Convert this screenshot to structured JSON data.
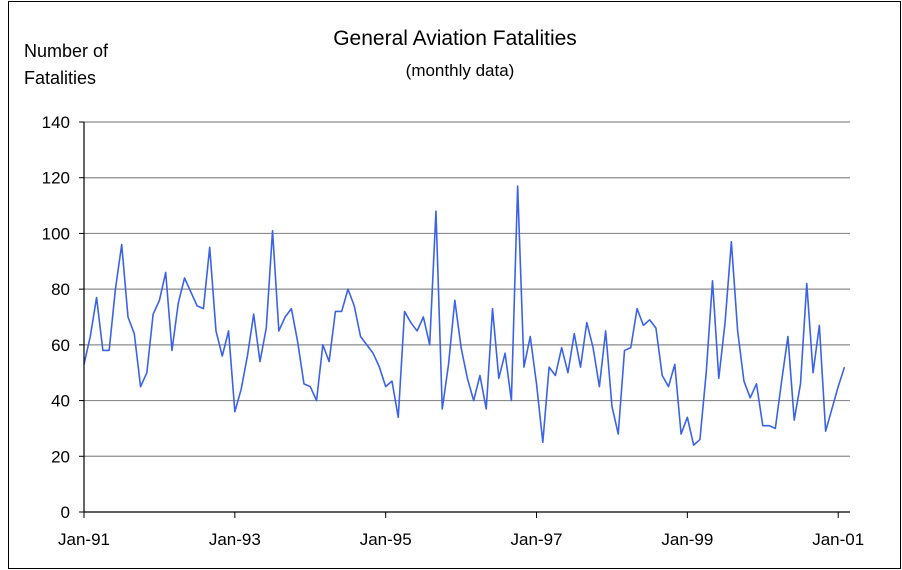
{
  "chart_data": {
    "type": "line",
    "title": "General Aviation Fatalities",
    "subtitle": "(monthly data)",
    "ylabel": "Number of Fatalities",
    "categories": [
      "Jan-91",
      null,
      null,
      null,
      null,
      null,
      null,
      null,
      null,
      null,
      null,
      null,
      null,
      null,
      null,
      null,
      null,
      null,
      null,
      null,
      null,
      null,
      null,
      null,
      "Jan-93",
      null,
      null,
      null,
      null,
      null,
      null,
      null,
      null,
      null,
      null,
      null,
      null,
      null,
      null,
      null,
      null,
      null,
      null,
      null,
      null,
      null,
      null,
      null,
      "Jan-95",
      null,
      null,
      null,
      null,
      null,
      null,
      null,
      null,
      null,
      null,
      null,
      null,
      null,
      null,
      null,
      null,
      null,
      null,
      null,
      null,
      null,
      null,
      null,
      "Jan-97",
      null,
      null,
      null,
      null,
      null,
      null,
      null,
      null,
      null,
      null,
      null,
      null,
      null,
      null,
      null,
      null,
      null,
      null,
      null,
      null,
      null,
      null,
      null,
      "Jan-99",
      null,
      null,
      null,
      null,
      null,
      null,
      null,
      null,
      null,
      null,
      null,
      null,
      null,
      null,
      null,
      null,
      null,
      null,
      null,
      null,
      null,
      null,
      null,
      "Jan-01",
      null
    ],
    "series": [
      {
        "name": "Fatalities",
        "color": "#3b63e8",
        "values": [
          53,
          63,
          77,
          58,
          58,
          80,
          96,
          70,
          64,
          45,
          50,
          71,
          76,
          86,
          58,
          75,
          84,
          79,
          74,
          73,
          95,
          65,
          56,
          65,
          36,
          44,
          56,
          71,
          54,
          66,
          101,
          65,
          70,
          73,
          61,
          46,
          45,
          40,
          60,
          54,
          72,
          72,
          80,
          74,
          63,
          60,
          57,
          52,
          45,
          47,
          34,
          72,
          68,
          65,
          70,
          60,
          108,
          37,
          53,
          76,
          59,
          48,
          40,
          49,
          37,
          73,
          48,
          57,
          40,
          117,
          52,
          63,
          46,
          25,
          52,
          49,
          59,
          50,
          64,
          52,
          68,
          59,
          45,
          65,
          38,
          28,
          58,
          59,
          73,
          67,
          69,
          66,
          49,
          45,
          53,
          28,
          34,
          24,
          26,
          50,
          83,
          48,
          68,
          97,
          65,
          47,
          41,
          46,
          31,
          31,
          30,
          47,
          63,
          33,
          46,
          82,
          50,
          67,
          29,
          37,
          45,
          52
        ]
      }
    ],
    "ylim": [
      0,
      140
    ],
    "yticks": [
      0,
      20,
      40,
      60,
      80,
      100,
      120,
      140
    ],
    "grid": true
  }
}
